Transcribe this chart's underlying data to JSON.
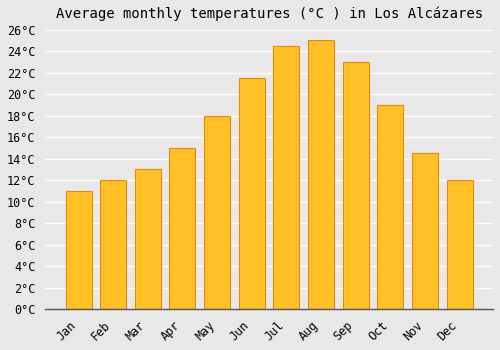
{
  "title": "Average monthly temperatures (°C ) in Los Alcázares",
  "months": [
    "Jan",
    "Feb",
    "Mar",
    "Apr",
    "May",
    "Jun",
    "Jul",
    "Aug",
    "Sep",
    "Oct",
    "Nov",
    "Dec"
  ],
  "values": [
    11,
    12,
    13,
    15,
    18,
    21.5,
    24.5,
    25,
    23,
    19,
    14.5,
    12
  ],
  "bar_color": "#FFC125",
  "bar_edge_color": "#E8890A",
  "background_color": "#E8E8E8",
  "plot_bg_color": "#E8E8E8",
  "grid_color": "#FFFFFF",
  "ylim": [
    0,
    26
  ],
  "ytick_step": 2,
  "title_fontsize": 10,
  "tick_fontsize": 8.5,
  "font_family": "monospace"
}
